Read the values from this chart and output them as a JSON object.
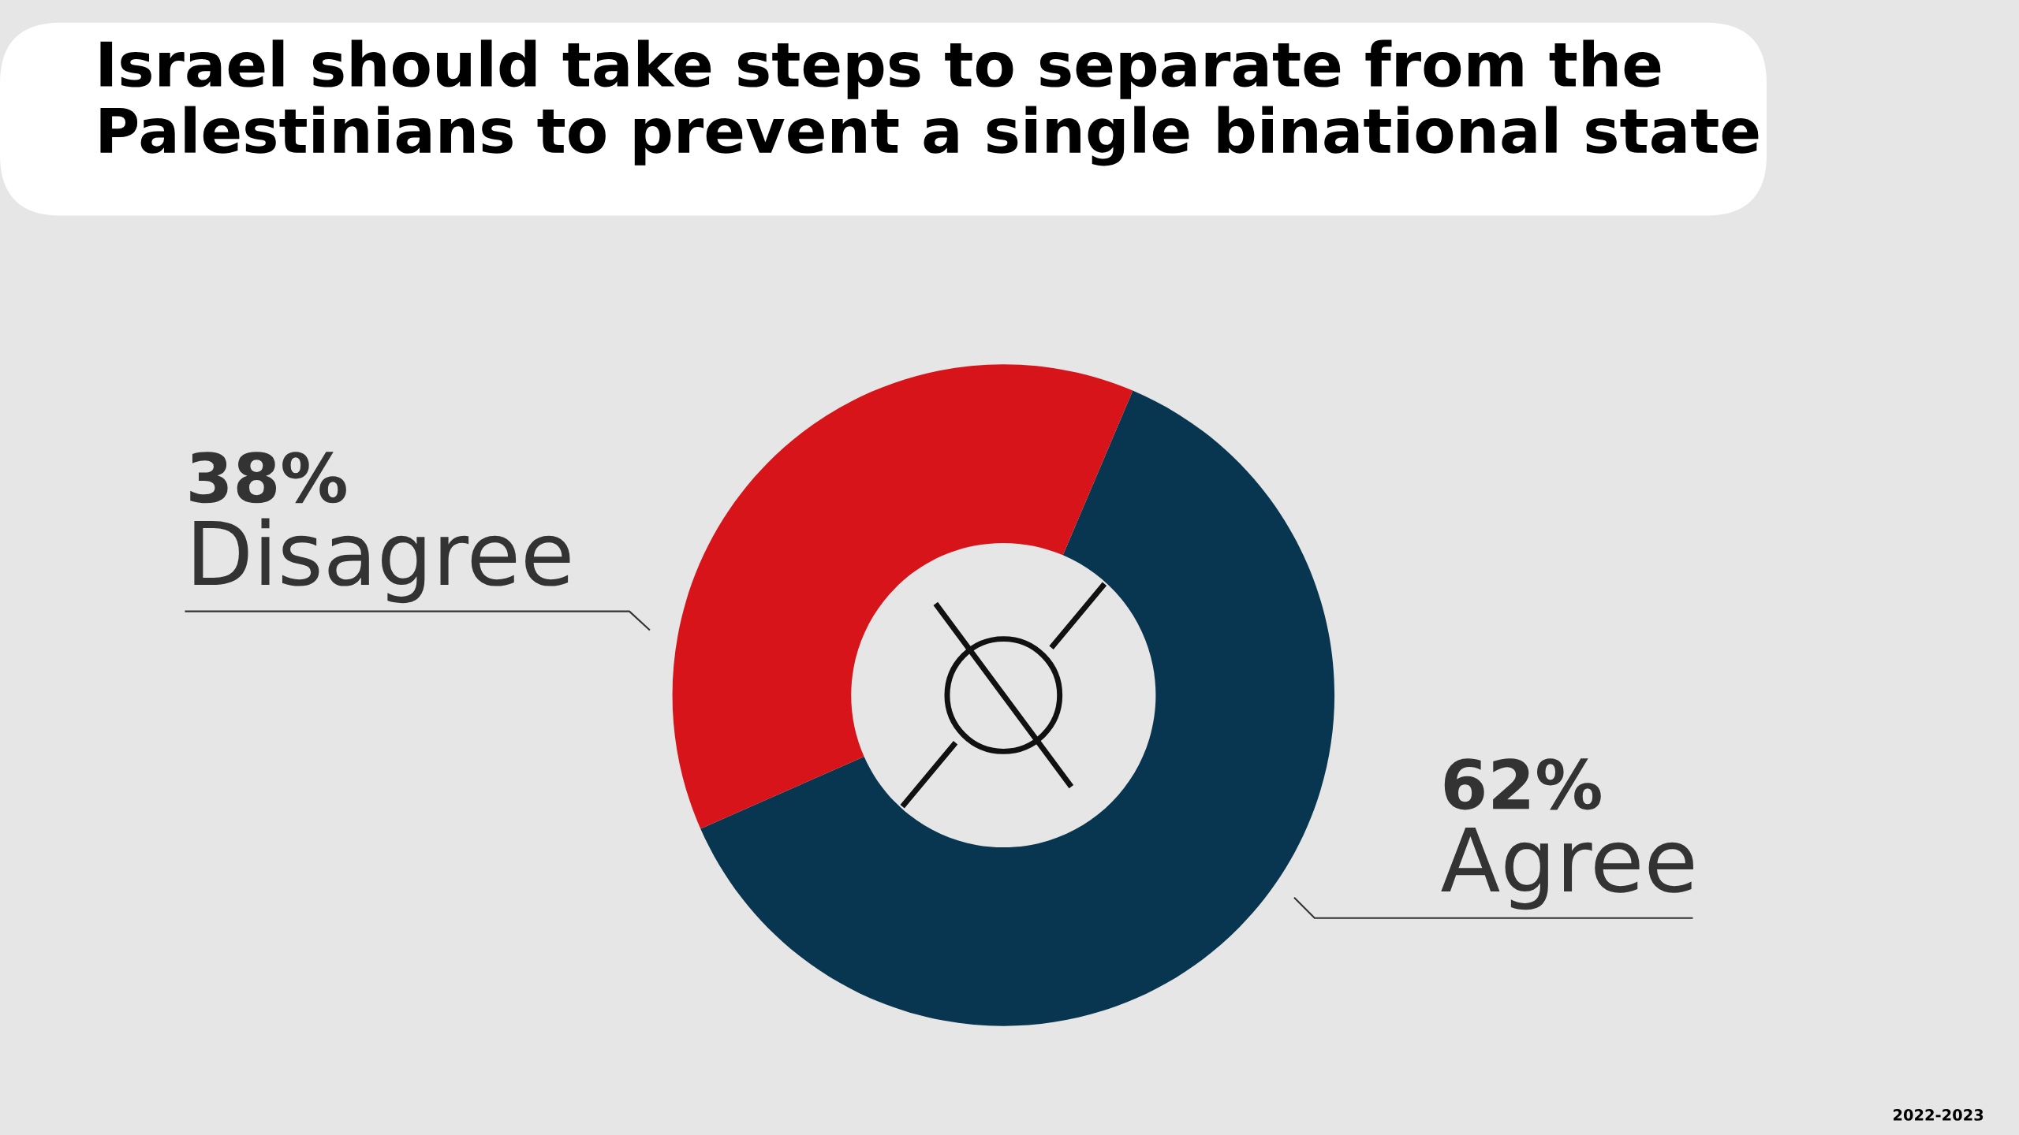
{
  "chart_data": {
    "type": "donut",
    "title": "Israel should take steps to separate from the Palestinians to prevent a single binational state",
    "categories": [
      "Agree",
      "Disagree"
    ],
    "values": [
      62,
      38
    ],
    "colors": [
      "#08354f",
      "#d7141a"
    ],
    "value_labels": [
      "62%",
      "38%"
    ],
    "legend": false,
    "annotations": [
      "2022-2023"
    ]
  }
}
